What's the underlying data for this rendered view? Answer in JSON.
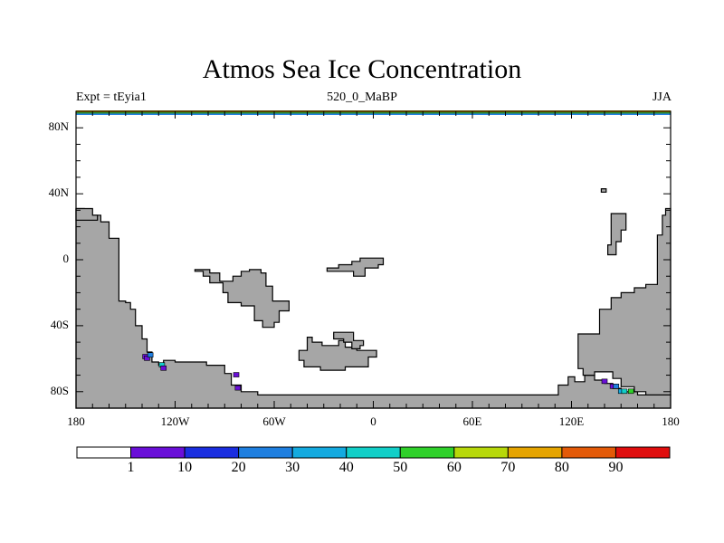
{
  "title": "Atmos Sea Ice Concentration",
  "subtitle_left": "Expt = tEyia1",
  "subtitle_center": "520_0_MaBP",
  "subtitle_right": "JJA",
  "lat_labels": [
    "80N",
    "40N",
    "0",
    "40S",
    "80S"
  ],
  "lat_values": [
    80,
    40,
    0,
    -40,
    -80
  ],
  "lon_labels": [
    "180",
    "120W",
    "60W",
    "0",
    "60E",
    "120E",
    "180"
  ],
  "lon_values": [
    -180,
    -120,
    -60,
    0,
    60,
    120,
    180
  ],
  "colorbar": {
    "labels": [
      "1",
      "10",
      "20",
      "30",
      "40",
      "50",
      "60",
      "70",
      "80",
      "90"
    ],
    "colors": [
      "#ffffff",
      "#6a0fd8",
      "#1a2ee0",
      "#1f7fe0",
      "#14aae0",
      "#12cfc8",
      "#2fd12a",
      "#b7d80a",
      "#e5a400",
      "#e35a08",
      "#e00e0e"
    ]
  },
  "colors": {
    "land": "#a6a6a6",
    "ice_violet": "#6a0fd8",
    "ice_blue": "#1f7fe0",
    "ice_cyan": "#14aae0",
    "ice_teal": "#12cfc8",
    "ice_green": "#2fd12a",
    "top_band": "#d6a800"
  },
  "chart_data": {
    "type": "map",
    "projection": "cylindrical equidistant",
    "variable": "Atmos Sea Ice Concentration",
    "units": "%",
    "lon_range": [
      -180,
      180
    ],
    "lat_range": [
      -90,
      90
    ],
    "levels": [
      1,
      10,
      20,
      30,
      40,
      50,
      60,
      70,
      80,
      90
    ],
    "land_polygons": [
      [
        [
          -180,
          31
        ],
        [
          -175,
          31
        ],
        [
          -175,
          28
        ],
        [
          -172,
          28
        ],
        [
          -172,
          27
        ],
        [
          -165,
          27
        ],
        [
          -165,
          23
        ],
        [
          -160,
          23
        ],
        [
          -160,
          13
        ],
        [
          -154,
          13
        ],
        [
          -154,
          -25
        ],
        [
          -150,
          -25
        ],
        [
          -150,
          -26
        ],
        [
          -147,
          -26
        ],
        [
          -147,
          -30
        ],
        [
          -144,
          -30
        ],
        [
          -144,
          -40
        ],
        [
          -140,
          -40
        ],
        [
          -140,
          -48
        ],
        [
          -137,
          -48
        ],
        [
          -137,
          -56
        ],
        [
          -134,
          -56
        ],
        [
          -134,
          -62
        ],
        [
          -130,
          -62
        ],
        [
          -130,
          -64
        ],
        [
          -127,
          -64
        ],
        [
          -127,
          -61
        ],
        [
          -120,
          -61
        ],
        [
          -120,
          -62
        ],
        [
          -101,
          -62
        ],
        [
          -101,
          -64
        ],
        [
          -90,
          -64
        ],
        [
          -90,
          -69
        ],
        [
          -86,
          -69
        ],
        [
          -86,
          -76
        ],
        [
          -80,
          -76
        ],
        [
          -80,
          -80
        ],
        [
          -70,
          -80
        ],
        [
          -70,
          -82
        ],
        [
          -50,
          -82
        ],
        [
          -30,
          -82
        ],
        [
          0,
          -82
        ],
        [
          30,
          -82
        ],
        [
          60,
          -82
        ],
        [
          90,
          -82
        ],
        [
          112,
          -82
        ],
        [
          112,
          -76
        ],
        [
          118,
          -76
        ],
        [
          118,
          -71
        ],
        [
          122,
          -71
        ],
        [
          122,
          -74
        ],
        [
          128,
          -74
        ],
        [
          128,
          -70
        ],
        [
          134,
          -70
        ],
        [
          134,
          -73
        ],
        [
          140,
          -73
        ],
        [
          140,
          -75
        ],
        [
          145,
          -75
        ],
        [
          145,
          -78
        ],
        [
          150,
          -78
        ],
        [
          150,
          -80
        ],
        [
          160,
          -80
        ],
        [
          160,
          -82
        ],
        [
          170,
          -82
        ],
        [
          180,
          -82
        ],
        [
          180,
          -90
        ],
        [
          -180,
          -90
        ]
      ],
      [
        [
          -180,
          31
        ],
        [
          -170,
          31
        ],
        [
          -170,
          27
        ],
        [
          -167,
          27
        ],
        [
          -167,
          24
        ],
        [
          -180,
          24
        ]
      ],
      [
        [
          180,
          31
        ],
        [
          177,
          31
        ],
        [
          177,
          27
        ],
        [
          175,
          27
        ],
        [
          175,
          15
        ],
        [
          172,
          15
        ],
        [
          172,
          -15
        ],
        [
          165,
          -15
        ],
        [
          165,
          -17
        ],
        [
          158,
          -17
        ],
        [
          158,
          -20
        ],
        [
          150,
          -20
        ],
        [
          150,
          -23
        ],
        [
          144,
          -23
        ],
        [
          144,
          -30
        ],
        [
          137,
          -30
        ],
        [
          137,
          -45
        ],
        [
          124,
          -45
        ],
        [
          124,
          -66
        ],
        [
          127,
          -66
        ],
        [
          127,
          -70
        ],
        [
          134,
          -70
        ],
        [
          134,
          -68
        ],
        [
          145,
          -68
        ],
        [
          145,
          -72
        ],
        [
          150,
          -72
        ],
        [
          150,
          -77
        ],
        [
          158,
          -77
        ],
        [
          158,
          -80
        ],
        [
          165,
          -80
        ],
        [
          165,
          -82
        ],
        [
          180,
          -82
        ]
      ],
      [
        [
          -108,
          -7
        ],
        [
          -103,
          -7
        ],
        [
          -103,
          -10
        ],
        [
          -99,
          -10
        ],
        [
          -99,
          -14
        ],
        [
          -91,
          -14
        ],
        [
          -91,
          -20
        ],
        [
          -88,
          -20
        ],
        [
          -88,
          -26
        ],
        [
          -80,
          -26
        ],
        [
          -80,
          -28
        ],
        [
          -72,
          -28
        ],
        [
          -72,
          -37
        ],
        [
          -67,
          -37
        ],
        [
          -67,
          -41
        ],
        [
          -60,
          -41
        ],
        [
          -60,
          -38
        ],
        [
          -57,
          -38
        ],
        [
          -57,
          -31
        ],
        [
          -51,
          -31
        ],
        [
          -51,
          -25
        ],
        [
          -61,
          -25
        ],
        [
          -61,
          -16
        ],
        [
          -65,
          -16
        ],
        [
          -65,
          -8
        ],
        [
          -68,
          -8
        ],
        [
          -68,
          -6
        ],
        [
          -75,
          -6
        ],
        [
          -75,
          -7
        ],
        [
          -80,
          -7
        ],
        [
          -80,
          -10
        ],
        [
          -85,
          -10
        ],
        [
          -85,
          -13
        ],
        [
          -93,
          -13
        ],
        [
          -93,
          -8
        ],
        [
          -99,
          -8
        ],
        [
          -99,
          -6
        ],
        [
          -108,
          -6
        ]
      ],
      [
        [
          -28,
          -5
        ],
        [
          -21,
          -5
        ],
        [
          -21,
          -3
        ],
        [
          -13,
          -3
        ],
        [
          -13,
          -1
        ],
        [
          -8,
          -1
        ],
        [
          -8,
          1
        ],
        [
          6,
          1
        ],
        [
          6,
          -3
        ],
        [
          3,
          -3
        ],
        [
          3,
          -5
        ],
        [
          -5,
          -5
        ],
        [
          -5,
          -10
        ],
        [
          -12,
          -10
        ],
        [
          -12,
          -7
        ],
        [
          -28,
          -7
        ]
      ],
      [
        [
          -45,
          -55
        ],
        [
          -40,
          -55
        ],
        [
          -40,
          -47
        ],
        [
          -37,
          -47
        ],
        [
          -37,
          -50
        ],
        [
          -31,
          -50
        ],
        [
          -31,
          -52
        ],
        [
          -21,
          -52
        ],
        [
          -21,
          -49
        ],
        [
          -17,
          -49
        ],
        [
          -17,
          -53
        ],
        [
          -10,
          -53
        ],
        [
          -10,
          -55
        ],
        [
          2,
          -55
        ],
        [
          2,
          -59
        ],
        [
          -3,
          -59
        ],
        [
          -3,
          -65
        ],
        [
          -17,
          -65
        ],
        [
          -17,
          -67
        ],
        [
          -32,
          -67
        ],
        [
          -32,
          -65
        ],
        [
          -42,
          -65
        ],
        [
          -42,
          -61
        ],
        [
          -45,
          -61
        ]
      ],
      [
        [
          -24,
          -44
        ],
        [
          -12,
          -44
        ],
        [
          -12,
          -49
        ],
        [
          -6,
          -49
        ],
        [
          -6,
          -52
        ],
        [
          -8,
          -52
        ],
        [
          -8,
          -54
        ],
        [
          -13,
          -54
        ],
        [
          -13,
          -50
        ],
        [
          -18,
          -50
        ],
        [
          -18,
          -48
        ],
        [
          -24,
          -48
        ]
      ],
      [
        [
          138,
          43
        ],
        [
          141,
          43
        ],
        [
          141,
          41
        ],
        [
          138,
          41
        ]
      ],
      [
        [
          144,
          28
        ],
        [
          153,
          28
        ],
        [
          153,
          18
        ],
        [
          150,
          18
        ],
        [
          150,
          11
        ],
        [
          147,
          11
        ],
        [
          147,
          3
        ],
        [
          142,
          3
        ],
        [
          142,
          9
        ],
        [
          144,
          9
        ]
      ]
    ],
    "sea_ice_cells": [
      [
        -138,
        -59,
        "#6a0fd8"
      ],
      [
        -137,
        -60,
        "#6a0fd8"
      ],
      [
        -135,
        -58,
        "#1f7fe0"
      ],
      [
        -128,
        -64,
        "#12cfc8"
      ],
      [
        -127,
        -66,
        "#6a0fd8"
      ],
      [
        -83,
        -70,
        "#6a0fd8"
      ],
      [
        -82,
        -78,
        "#6a0fd8"
      ],
      [
        140,
        -74,
        "#6a0fd8"
      ],
      [
        145,
        -77,
        "#6a0fd8"
      ],
      [
        147,
        -77,
        "#1f7fe0"
      ],
      [
        150,
        -80,
        "#14aae0"
      ],
      [
        152,
        -80,
        "#12cfc8"
      ],
      [
        156,
        -80,
        "#2fd12a"
      ]
    ]
  }
}
